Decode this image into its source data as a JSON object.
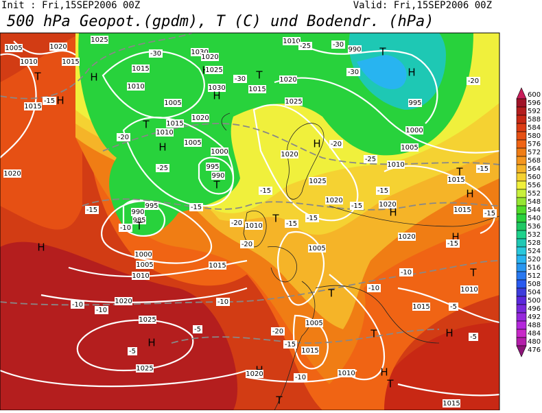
{
  "header": {
    "init": "Init : Fri,15SEP2006 00Z",
    "valid": "Valid: Fri,15SEP2006 00Z",
    "title": "500 hPa Geopot.(gpdm), T (C) und Bodendr. (hPa)"
  },
  "colorbar": {
    "ticks": [
      600,
      596,
      592,
      588,
      584,
      580,
      576,
      572,
      568,
      564,
      560,
      556,
      552,
      548,
      544,
      540,
      536,
      532,
      528,
      524,
      520,
      516,
      512,
      508,
      504,
      500,
      496,
      492,
      488,
      484,
      480,
      476
    ],
    "colors": [
      "#c81e5a",
      "#a01428",
      "#b41e1e",
      "#c82814",
      "#dc3c14",
      "#e65014",
      "#f06414",
      "#f07d14",
      "#f5961e",
      "#f5b428",
      "#f5d232",
      "#f0f03c",
      "#c8f03c",
      "#96e632",
      "#50dc28",
      "#28d23c",
      "#1ec864",
      "#1ed28c",
      "#1ec8b4",
      "#28c8dc",
      "#28b4f0",
      "#2896f0",
      "#2878f0",
      "#285af0",
      "#3c3cdc",
      "#5a28dc",
      "#7828dc",
      "#9628dc",
      "#b428dc",
      "#c828c8",
      "#b41eaa",
      "#8c1478"
    ]
  },
  "map": {
    "labels": [
      "1005",
      "1010",
      "1020",
      "1025",
      "1015",
      "T",
      "H",
      "H",
      "1015",
      "-15",
      "-30",
      "1015",
      "1010",
      "1030",
      "1020",
      "H",
      "1025",
      "1030",
      "H",
      "T",
      "1015",
      "1020",
      "-30",
      "1010",
      "-25",
      "-30",
      "990",
      "T",
      "-30",
      "H",
      "-20",
      "995",
      "1000",
      "1005",
      "1010",
      "-25",
      "1025",
      "T",
      "1005",
      "1015",
      "1020",
      "1010",
      "1005",
      "H",
      "-20",
      "1000",
      "995",
      "990",
      "T",
      "-25",
      "-15",
      "995",
      "990",
      "985",
      "T",
      "-10",
      "1010",
      "-20",
      "T",
      "-15",
      "-15",
      "1020",
      "1025",
      "1020",
      "-15",
      "-15",
      "1020",
      "H",
      "-15",
      "T",
      "1015",
      "-15",
      "H",
      "-15",
      "1015",
      "H",
      "1020",
      "-15",
      "T",
      "1010",
      "-10",
      "1015",
      "-5",
      "H",
      "-5",
      "T",
      "T",
      "-10",
      "1005",
      "1015",
      "-15",
      "-20",
      "1010",
      "H",
      "T",
      "H",
      "1020",
      "-10",
      "T",
      "1015",
      "H",
      "1000",
      "1005",
      "1010",
      "1015",
      "-10",
      "-10",
      "-10",
      "1020",
      "1025",
      "H",
      "-5",
      "1025",
      "-5",
      "1020",
      "-15",
      "-20",
      "1005",
      "-20",
      "H"
    ]
  }
}
